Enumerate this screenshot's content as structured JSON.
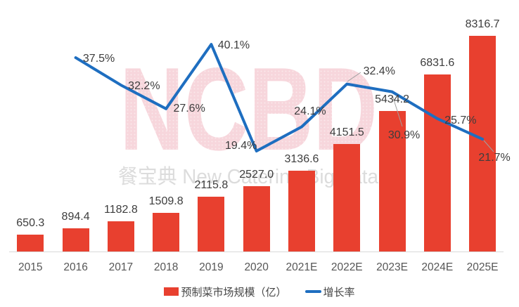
{
  "watermark": {
    "brand": "NCBD",
    "subtitle": "餐宝典 New Catering Big data",
    "brand_color": "#F7D6DC",
    "subtitle_color": "#DCDCDC"
  },
  "legend": [
    {
      "label": "预制菜市场规模（亿）",
      "type": "bar",
      "color": "#E8402F"
    },
    {
      "label": "增长率",
      "type": "line",
      "color": "#1E6EC0"
    }
  ],
  "colors": {
    "bar": "#E8402F",
    "line": "#1E6EC0",
    "data_label": "#3D3D3D",
    "axis_label": "#565656",
    "axis_line": "#D9D9D9",
    "leader_line": "#A0A0A0"
  },
  "chart_data": {
    "type": "bar",
    "subtype": "combo-bar-line",
    "categories": [
      "2015",
      "2016",
      "2017",
      "2018",
      "2019",
      "2020",
      "2021E",
      "2022E",
      "2023E",
      "2024E",
      "2025E"
    ],
    "series": [
      {
        "name": "预制菜市场规模（亿）",
        "type": "bar",
        "color": "#E8402F",
        "values": [
          650.3,
          894.4,
          1182.8,
          1509.8,
          2115.8,
          2527.0,
          3136.6,
          4151.5,
          5434.2,
          6831.6,
          8316.7
        ]
      },
      {
        "name": "增长率",
        "type": "line",
        "color": "#1E6EC0",
        "unit": "%",
        "first_category": "2016",
        "values": [
          37.5,
          32.2,
          27.6,
          40.1,
          19.4,
          24.1,
          32.4,
          30.9,
          25.7,
          21.7
        ]
      }
    ],
    "title": "",
    "xlabel": "",
    "ylabel": "",
    "value_axis_visible": false,
    "bar_axis_range": [
      0,
      8316.7
    ],
    "line_axis_range_pct": [
      0,
      45
    ],
    "grid": false,
    "legend_position": "bottom",
    "data_labels_shown": true
  }
}
